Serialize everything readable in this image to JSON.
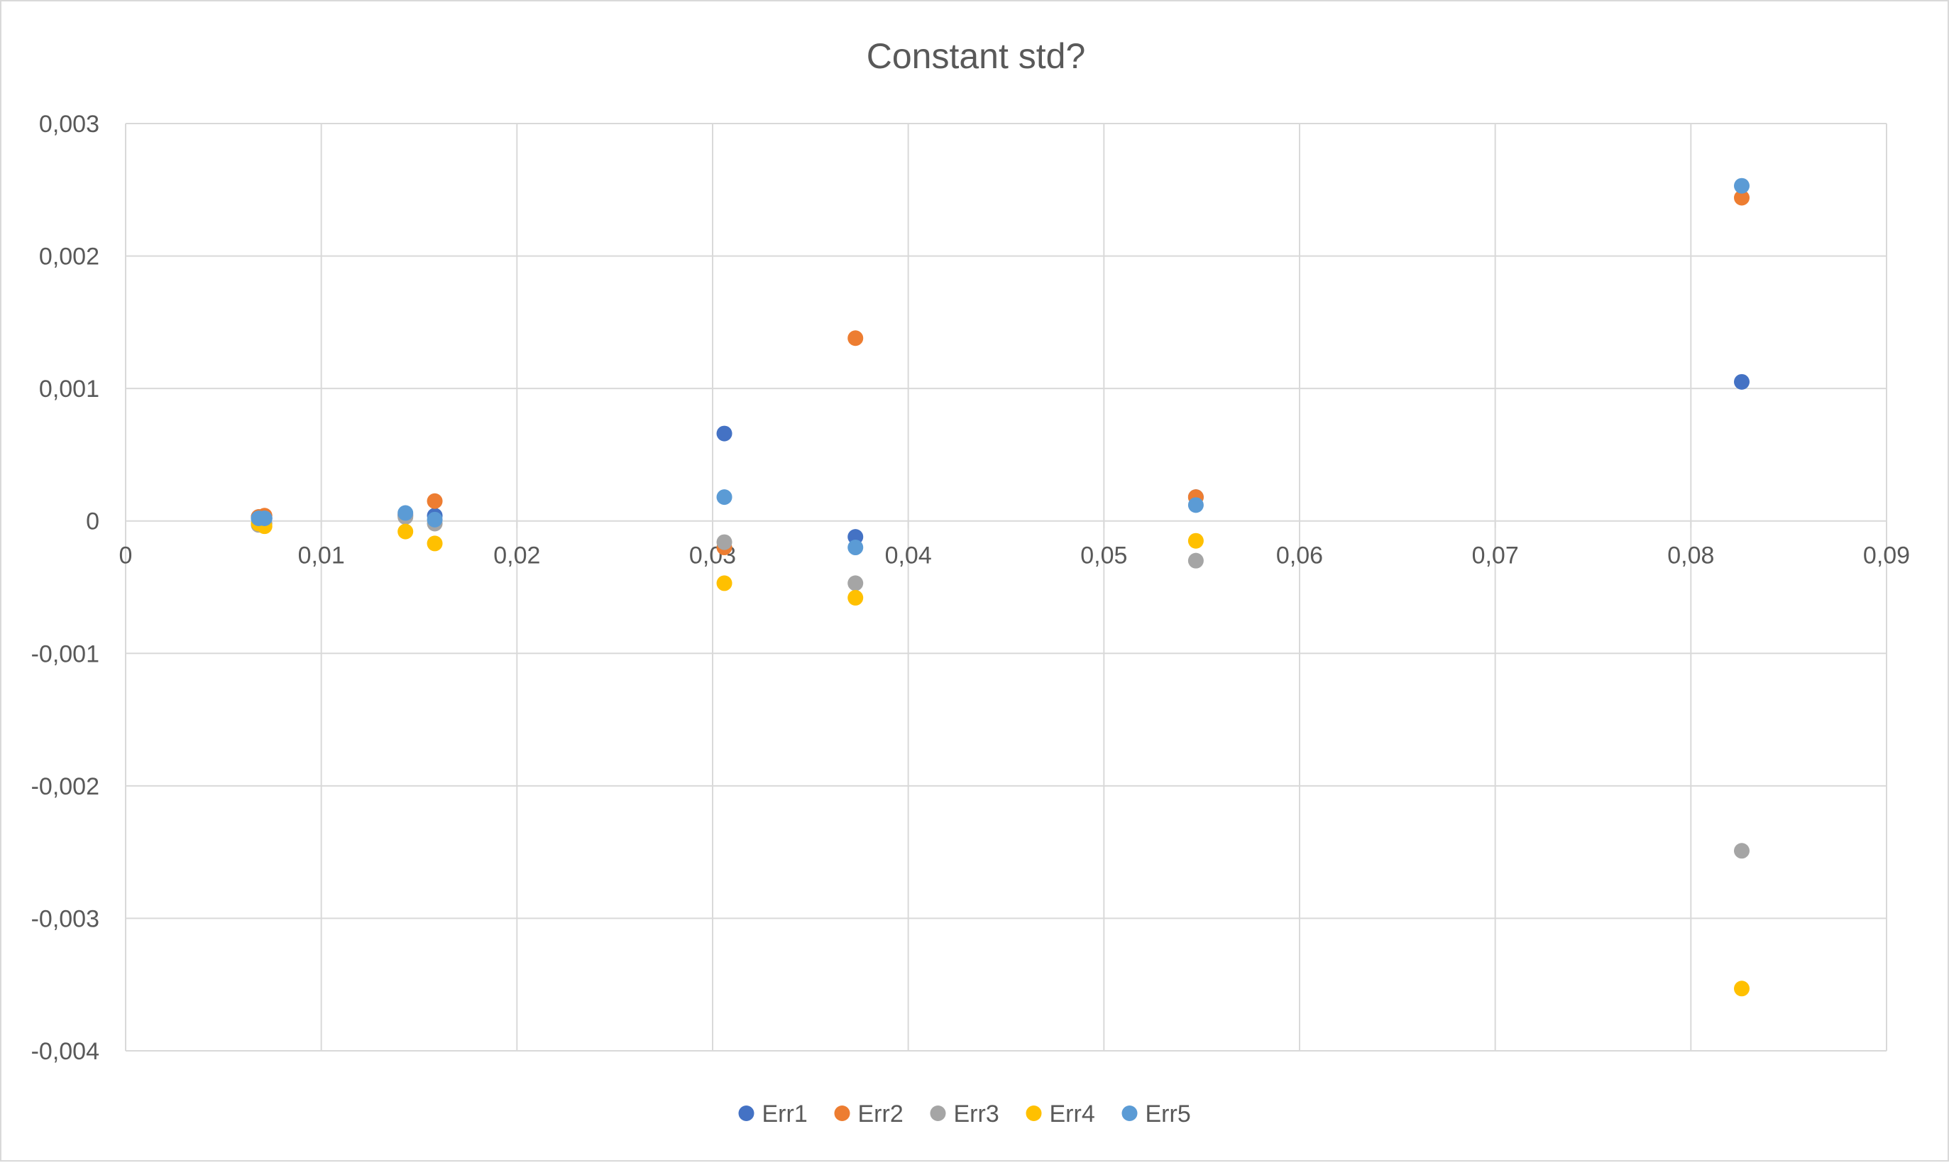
{
  "chart_data": {
    "type": "scatter",
    "title": "Constant std?",
    "xlabel": "",
    "ylabel": "",
    "xlim": [
      0,
      0.09
    ],
    "ylim": [
      -0.004,
      0.003
    ],
    "x_ticks": [
      0,
      0.01,
      0.02,
      0.03,
      0.04,
      0.05,
      0.06,
      0.07,
      0.08,
      0.09
    ],
    "x_tick_labels": [
      "0",
      "0,01",
      "0,02",
      "0,03",
      "0,04",
      "0,05",
      "0,06",
      "0,07",
      "0,08",
      "0,09"
    ],
    "y_ticks": [
      0.003,
      0.002,
      0.001,
      0,
      -0.001,
      -0.002,
      -0.003,
      -0.004
    ],
    "y_tick_labels": [
      "0,003",
      "0,002",
      "0,001",
      "0",
      "-0,001",
      "-0,002",
      "-0,003",
      "-0,004"
    ],
    "grid": true,
    "legend_position": "bottom",
    "series": [
      {
        "name": "Err1",
        "color": "#4472C4",
        "points": [
          [
            0.0068,
            3e-05
          ],
          [
            0.0071,
            2e-05
          ],
          [
            0.0143,
            4e-05
          ],
          [
            0.0158,
            4e-05
          ],
          [
            0.0306,
            0.00066
          ],
          [
            0.0373,
            -0.00012
          ],
          [
            0.0547,
            0.00018
          ],
          [
            0.0826,
            0.00105
          ]
        ]
      },
      {
        "name": "Err2",
        "color": "#ED7D31",
        "points": [
          [
            0.0068,
            3e-05
          ],
          [
            0.0071,
            4e-05
          ],
          [
            0.0143,
            5e-05
          ],
          [
            0.0158,
            0.00015
          ],
          [
            0.0306,
            -0.0002
          ],
          [
            0.0373,
            0.00138
          ],
          [
            0.0547,
            0.00018
          ],
          [
            0.0826,
            0.00244
          ]
        ]
      },
      {
        "name": "Err3",
        "color": "#A5A5A5",
        "points": [
          [
            0.0068,
            -3e-05
          ],
          [
            0.0071,
            -2e-05
          ],
          [
            0.0143,
            3e-05
          ],
          [
            0.0158,
            -2e-05
          ],
          [
            0.0306,
            -0.00016
          ],
          [
            0.0373,
            -0.00047
          ],
          [
            0.0547,
            -0.0003
          ],
          [
            0.0826,
            -0.00249
          ]
        ]
      },
      {
        "name": "Err4",
        "color": "#FFC000",
        "points": [
          [
            0.0068,
            -2e-05
          ],
          [
            0.0071,
            -4e-05
          ],
          [
            0.0143,
            -8e-05
          ],
          [
            0.0158,
            -0.00017
          ],
          [
            0.0306,
            -0.00047
          ],
          [
            0.0373,
            -0.00058
          ],
          [
            0.0547,
            -0.00015
          ],
          [
            0.0826,
            -0.00353
          ]
        ]
      },
      {
        "name": "Err5",
        "color": "#5B9BD5",
        "points": [
          [
            0.0068,
            2e-05
          ],
          [
            0.0071,
            2e-05
          ],
          [
            0.0143,
            6e-05
          ],
          [
            0.0158,
            1e-05
          ],
          [
            0.0306,
            0.00018
          ],
          [
            0.0373,
            -0.0002
          ],
          [
            0.0547,
            0.00012
          ],
          [
            0.0826,
            0.00253
          ]
        ]
      }
    ]
  }
}
